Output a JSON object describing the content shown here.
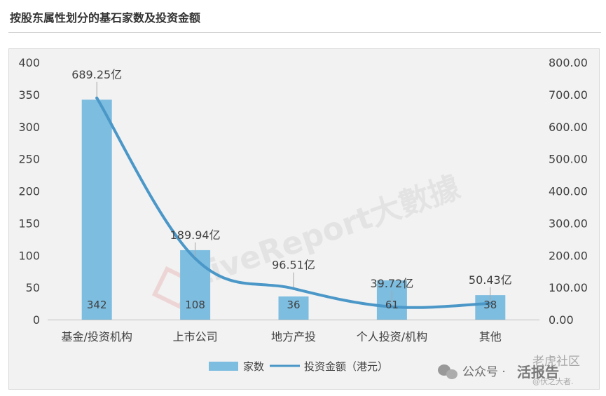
{
  "page": {
    "title": "按股东属性划分的基石家数及投资金额"
  },
  "watermarks": {
    "main": "LiveReport大數據",
    "source_prefix": "公众号 · ",
    "source_name": "活报告",
    "corner_top": "老虎社区",
    "corner_bottom": "@伏之大者."
  },
  "colors": {
    "bar": "#7dbde0",
    "line": "#4a97c8",
    "frame_bg": "#f2f2f2",
    "title_text": "#333333",
    "axis_text": "#404040"
  },
  "chart_data": {
    "type": "bar",
    "title": "",
    "xlabel": "",
    "ylabel": "",
    "categories": [
      "基金/投资机构",
      "上市公司",
      "地方产投",
      "个人投资/机构",
      "其他"
    ],
    "series": [
      {
        "name": "家数",
        "type": "bar",
        "axis": "left",
        "values": [
          342,
          108,
          36,
          61,
          38
        ],
        "data_labels": [
          "342",
          "108",
          "36",
          "61",
          "38"
        ]
      },
      {
        "name": "投资金额（港元）",
        "type": "line",
        "axis": "right",
        "values": [
          689.25,
          189.94,
          96.51,
          39.72,
          50.43
        ],
        "data_labels": [
          "689.25亿",
          "189.94亿",
          "96.51亿",
          "39.72亿",
          "50.43亿"
        ]
      }
    ],
    "y_left": {
      "ylim": [
        0,
        400
      ],
      "ticks": [
        "0",
        "50",
        "100",
        "150",
        "200",
        "250",
        "300",
        "350",
        "400"
      ]
    },
    "y_right": {
      "ylim": [
        0,
        800
      ],
      "ticks": [
        "0.00",
        "100.00",
        "200.00",
        "300.00",
        "400.00",
        "500.00",
        "600.00",
        "700.00",
        "800.00"
      ]
    },
    "grid": false,
    "legend": {
      "position": "bottom",
      "entries": [
        "家数",
        "投资金额（港元）"
      ]
    }
  }
}
